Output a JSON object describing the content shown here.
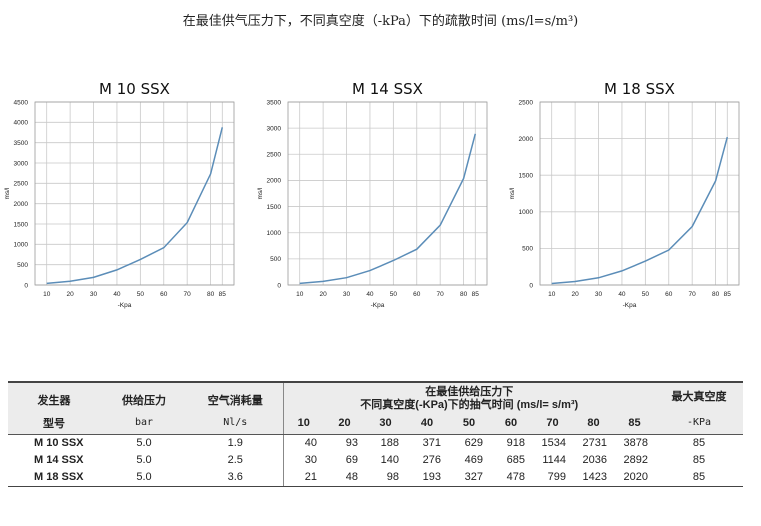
{
  "page_title": "在最佳供气压力下，不同真空度（-kPa）下的疏散时间 (ms/l=s/m³)",
  "chart_data": [
    {
      "type": "line",
      "title": "M 10 SSX",
      "xlabel": "-Kpa",
      "ylabel": "ms/l",
      "x": [
        10,
        20,
        30,
        40,
        50,
        60,
        70,
        80,
        85
      ],
      "values": [
        40,
        93,
        188,
        371,
        629,
        918,
        1534,
        2731,
        3878
      ],
      "ylim": [
        0,
        4500
      ],
      "yticks": [
        0,
        500,
        1000,
        1500,
        2000,
        2500,
        3000,
        3500,
        4000,
        4500
      ],
      "grid": true
    },
    {
      "type": "line",
      "title": "M 14 SSX",
      "xlabel": "-Kpa",
      "ylabel": "ms/l",
      "x": [
        10,
        20,
        30,
        40,
        50,
        60,
        70,
        80,
        85
      ],
      "values": [
        30,
        69,
        140,
        276,
        469,
        685,
        1144,
        2036,
        2892
      ],
      "ylim": [
        0,
        3500
      ],
      "yticks": [
        0,
        500,
        1000,
        1500,
        2000,
        2500,
        3000,
        3500
      ],
      "grid": true
    },
    {
      "type": "line",
      "title": "M 18 SSX",
      "xlabel": "-Kpa",
      "ylabel": "ms/l",
      "x": [
        10,
        20,
        30,
        40,
        50,
        60,
        70,
        80,
        85
      ],
      "values": [
        21,
        48,
        98,
        193,
        327,
        478,
        799,
        1423,
        2020
      ],
      "ylim": [
        0,
        2500
      ],
      "yticks": [
        0,
        500,
        1000,
        1500,
        2000,
        2500
      ],
      "grid": true
    }
  ],
  "table": {
    "h_model_1": "发生器",
    "h_model_2": "型号",
    "h_pressure_1": "供给压力",
    "h_pressure_2": "bar",
    "h_air_1": "空气消耗量",
    "h_air_2": "Nl/s",
    "h_time_1": "在最佳供给压力下",
    "h_time_2": "不同真空度(-KPa)下的抽气时间 (ms/l= s/m³)",
    "h_vac_1": "最大真空度",
    "h_vac_2": "-KPa",
    "levels": [
      "10",
      "20",
      "30",
      "40",
      "50",
      "60",
      "70",
      "80",
      "85"
    ],
    "rows": [
      {
        "model": "M 10 SSX",
        "pressure": "5.0",
        "air": "1.9",
        "times": [
          "40",
          "93",
          "188",
          "371",
          "629",
          "918",
          "1534",
          "2731",
          "3878"
        ],
        "vac": "85"
      },
      {
        "model": "M 14 SSX",
        "pressure": "5.0",
        "air": "2.5",
        "times": [
          "30",
          "69",
          "140",
          "276",
          "469",
          "685",
          "1144",
          "2036",
          "2892"
        ],
        "vac": "85"
      },
      {
        "model": "M 18 SSX",
        "pressure": "5.0",
        "air": "3.6",
        "times": [
          "21",
          "48",
          "98",
          "193",
          "327",
          "478",
          "799",
          "1423",
          "2020"
        ],
        "vac": "85"
      }
    ]
  }
}
